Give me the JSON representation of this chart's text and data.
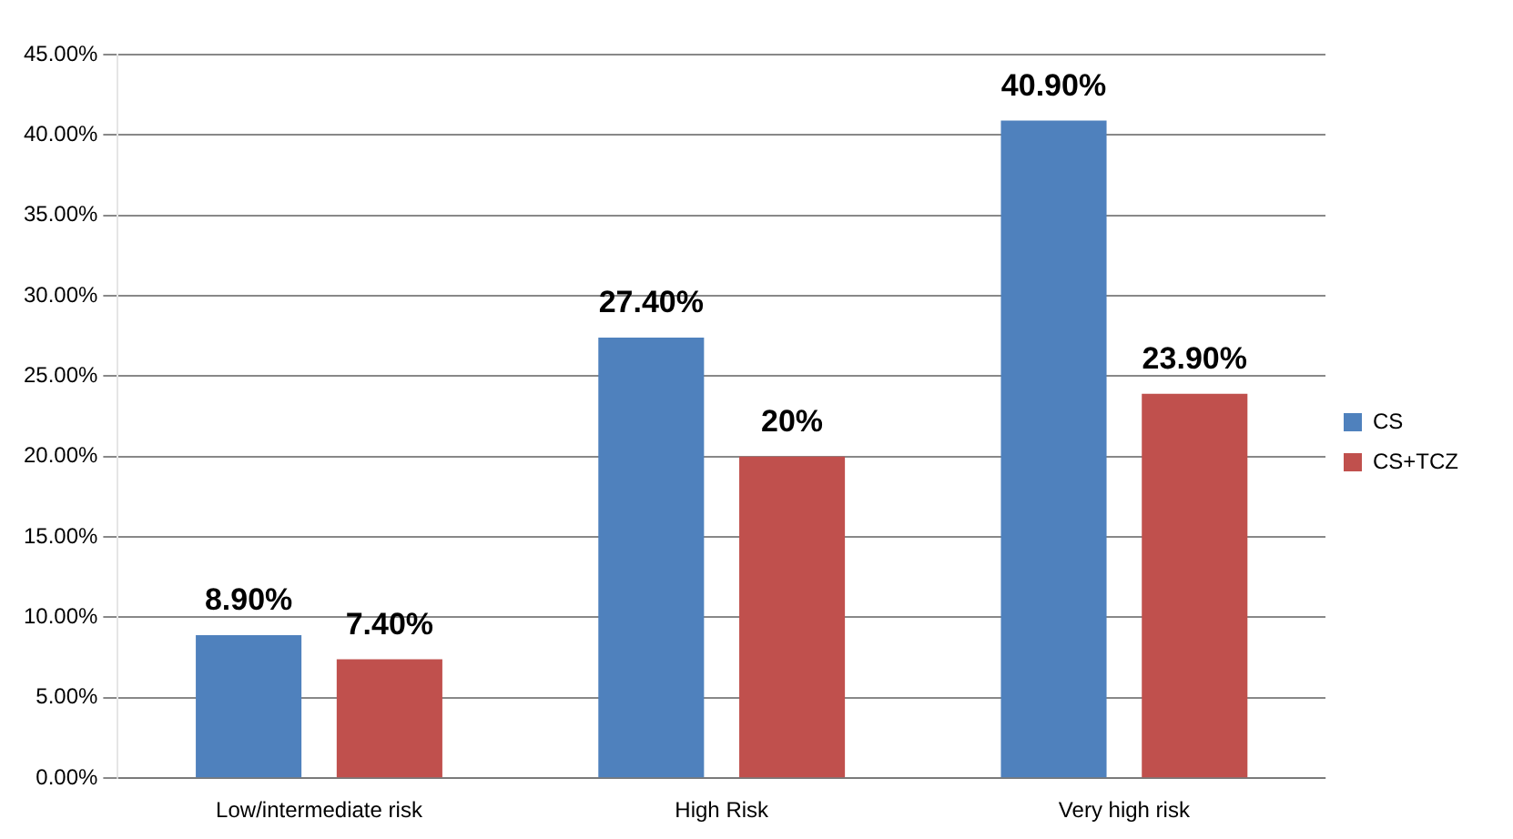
{
  "chart_data": {
    "type": "bar",
    "categories": [
      "Low/intermediate risk",
      "High Risk",
      "Very high risk"
    ],
    "series": [
      {
        "name": "CS",
        "color": "#4f81bd",
        "values": [
          8.9,
          27.4,
          40.9
        ],
        "value_labels": [
          "8.90%",
          "27.40%",
          "40.90%"
        ]
      },
      {
        "name": "CS+TCZ",
        "color": "#c0504d",
        "values": [
          7.4,
          20,
          23.9
        ],
        "value_labels": [
          "7.40%",
          "20%",
          "23.90%"
        ]
      }
    ],
    "ylim": [
      0,
      45
    ],
    "yticks": [
      {
        "value": 0,
        "label": "0.00%"
      },
      {
        "value": 5,
        "label": "5.00%"
      },
      {
        "value": 10,
        "label": "10.00%"
      },
      {
        "value": 15,
        "label": "15.00%"
      },
      {
        "value": 20,
        "label": "20.00%"
      },
      {
        "value": 25,
        "label": "25.00%"
      },
      {
        "value": 30,
        "label": "30.00%"
      },
      {
        "value": 35,
        "label": "35.00%"
      },
      {
        "value": 40,
        "label": "40.00%"
      },
      {
        "value": 45,
        "label": "45.00%"
      }
    ],
    "grid": "y",
    "legend": "right"
  }
}
